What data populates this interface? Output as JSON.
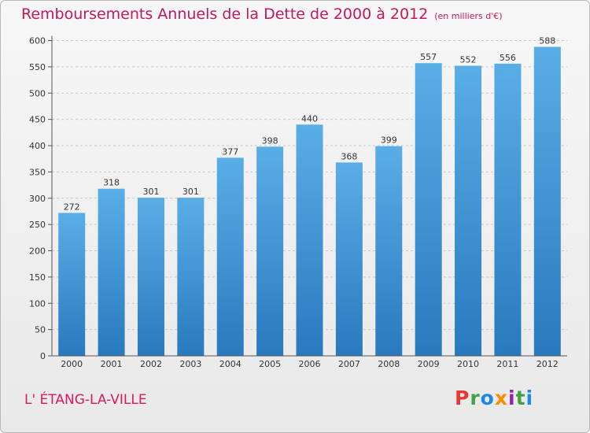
{
  "header": {
    "title": "Remboursements Annuels de la Dette de 2000 à 2012",
    "unit": "(en milliers d'€)"
  },
  "footer": {
    "commune": "L' ÉTANG-LA-VILLE",
    "logo": "Proxiti"
  },
  "colors": {
    "title": "#c2185b",
    "bar_top": "#5aaee6",
    "bar_bottom": "#2979be",
    "grid": "#c8c8c8",
    "axis": "#555555"
  },
  "chart_data": {
    "type": "bar",
    "title": "Remboursements Annuels de la Dette de 2000 à 2012",
    "xlabel": "",
    "ylabel": "",
    "categories": [
      "2000",
      "2001",
      "2002",
      "2003",
      "2004",
      "2005",
      "2006",
      "2007",
      "2008",
      "2009",
      "2010",
      "2011",
      "2012"
    ],
    "values": [
      272,
      318,
      301,
      301,
      377,
      398,
      440,
      368,
      399,
      557,
      552,
      556,
      588
    ],
    "ylim": [
      0,
      600
    ],
    "yticks": [
      0,
      50,
      100,
      150,
      200,
      250,
      300,
      350,
      400,
      450,
      500,
      550,
      600
    ],
    "grid": "horizontal dashed",
    "legend": "none"
  }
}
